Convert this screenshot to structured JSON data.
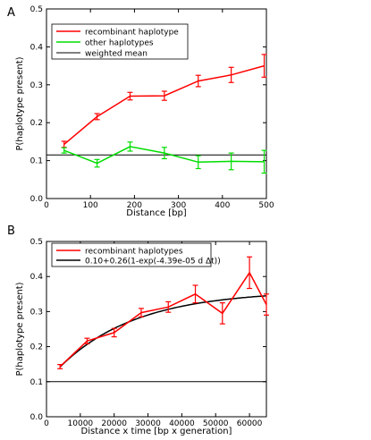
{
  "panels": [
    {
      "panel_label": "A",
      "chart_data": {
        "type": "line",
        "xlabel": "Distance [bp]",
        "ylabel": "P(haplotype present)",
        "xlim": [
          0,
          500
        ],
        "ylim": [
          0,
          0.5
        ],
        "xticks": [
          0,
          100,
          200,
          300,
          400,
          500
        ],
        "yticks": [
          0.0,
          0.1,
          0.2,
          0.3,
          0.4,
          0.5
        ],
        "xtick_labels": [
          "0",
          "100",
          "200",
          "300",
          "400",
          "500"
        ],
        "ytick_labels": [
          "0.0",
          "0.1",
          "0.2",
          "0.3",
          "0.4",
          "0.5"
        ],
        "grid": false,
        "legend_position": "top-left",
        "series": [
          {
            "name": "recombinant haplotype",
            "color": "#ff0000",
            "x": [
              40,
              115,
              190,
              268,
              345,
              420,
              495
            ],
            "y": [
              0.143,
              0.216,
              0.27,
              0.271,
              0.31,
              0.326,
              0.35
            ],
            "err": [
              0.008,
              0.008,
              0.01,
              0.012,
              0.015,
              0.02,
              0.03
            ]
          },
          {
            "name": "other haplotypes",
            "color": "#00dd00",
            "x": [
              40,
              115,
              190,
              268,
              345,
              420,
              495
            ],
            "y": [
              0.127,
              0.093,
              0.137,
              0.12,
              0.096,
              0.098,
              0.097
            ],
            "err": [
              0.007,
              0.01,
              0.012,
              0.015,
              0.017,
              0.022,
              0.03
            ]
          }
        ],
        "hlines": [
          {
            "name": "weighted mean",
            "color": "#000000",
            "y": 0.115
          }
        ]
      }
    },
    {
      "panel_label": "B",
      "chart_data": {
        "type": "line",
        "xlabel": "Distance x time [bp x generation]",
        "ylabel": "P(haplotype present)",
        "xlim": [
          0,
          65000
        ],
        "ylim": [
          0,
          0.5
        ],
        "xticks": [
          0,
          10000,
          20000,
          30000,
          40000,
          50000,
          60000
        ],
        "yticks": [
          0.0,
          0.1,
          0.2,
          0.3,
          0.4,
          0.5
        ],
        "xtick_labels": [
          "0",
          "10000",
          "20000",
          "30000",
          "40000",
          "50000",
          "60000"
        ],
        "ytick_labels": [
          "0.0",
          "0.1",
          "0.2",
          "0.3",
          "0.4",
          "0.5"
        ],
        "grid": false,
        "legend_position": "top-left",
        "series": [
          {
            "name": "recombinant haplotypes",
            "color": "#ff0000",
            "x": [
              4000,
              12000,
              20000,
              28000,
              36000,
              44000,
              52000,
              60000,
              65000
            ],
            "y": [
              0.143,
              0.216,
              0.24,
              0.297,
              0.313,
              0.35,
              0.295,
              0.411,
              0.32
            ],
            "err": [
              0.006,
              0.008,
              0.012,
              0.012,
              0.015,
              0.025,
              0.03,
              0.045,
              0.03
            ]
          }
        ],
        "fit": {
          "name": "0.10+0.26(1-exp(-4.39e-05 d Δt))",
          "color": "#000000",
          "a": 0.1,
          "b": 0.26,
          "k": 4.39e-05,
          "x_from": 4000,
          "x_to": 65000
        },
        "hlines": [
          {
            "color": "#000000",
            "y": 0.1
          }
        ]
      }
    }
  ]
}
